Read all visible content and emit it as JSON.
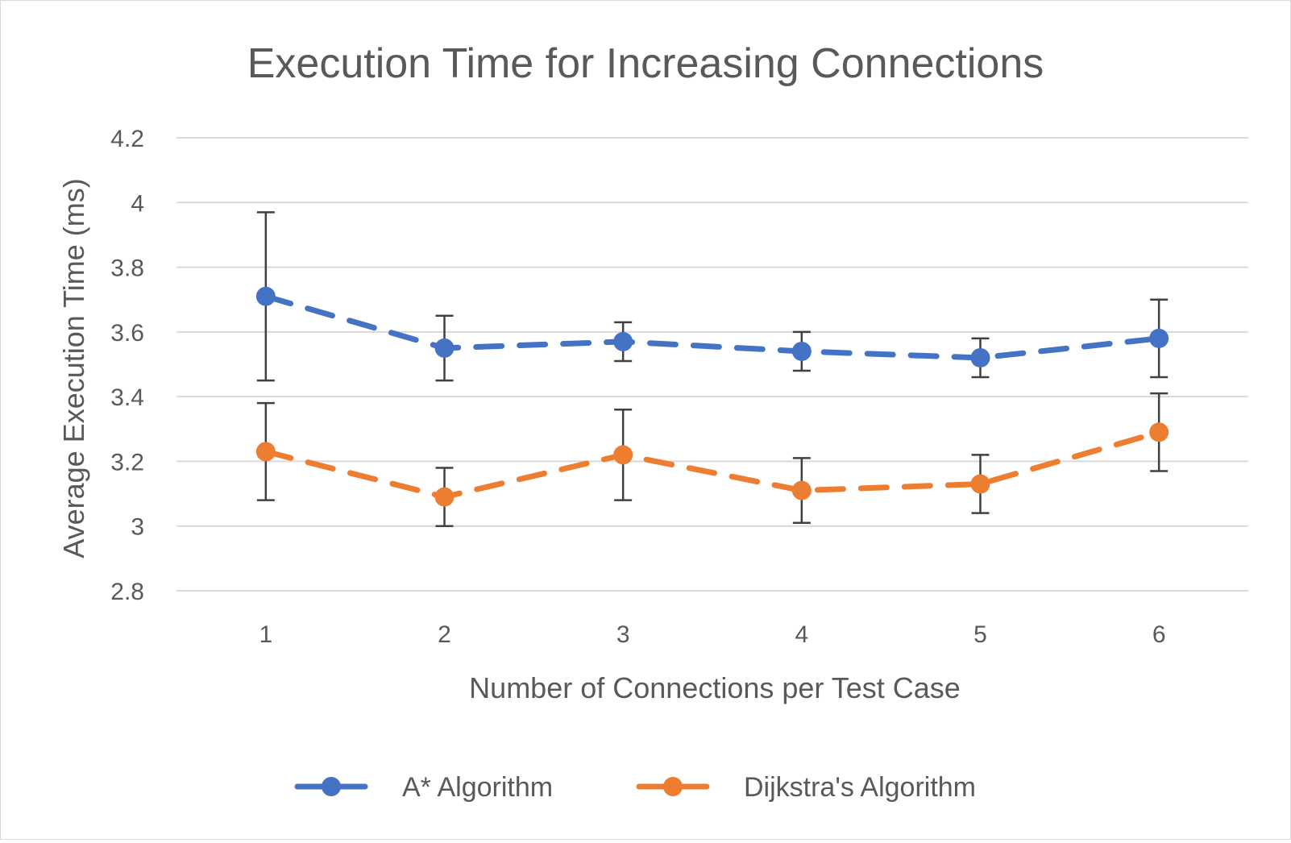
{
  "chart_data": {
    "type": "line",
    "title": "Execution Time for Increasing Connections",
    "xlabel": "Number of Connections per Test Case",
    "ylabel": "Average Execution Time (ms)",
    "categories": [
      "1",
      "2",
      "3",
      "4",
      "5",
      "6"
    ],
    "ylim": [
      2.8,
      4.2
    ],
    "yticks": [
      "2.8",
      "3",
      "3.2",
      "3.4",
      "3.6",
      "3.8",
      "4",
      "4.2"
    ],
    "ytick_values": [
      2.8,
      3.0,
      3.2,
      3.4,
      3.6,
      3.8,
      4.0,
      4.2
    ],
    "grid": true,
    "legend_position": "bottom",
    "line_style": "dashed",
    "error_bars": true,
    "series": [
      {
        "name": "A* Algorithm",
        "color": "#4472c4",
        "values": [
          3.71,
          3.55,
          3.57,
          3.54,
          3.52,
          3.58
        ],
        "error_low": [
          3.45,
          3.45,
          3.51,
          3.48,
          3.46,
          3.46
        ],
        "error_high": [
          3.97,
          3.65,
          3.63,
          3.6,
          3.58,
          3.7
        ]
      },
      {
        "name": "Dijkstra's Algorithm",
        "color": "#ed7d31",
        "values": [
          3.23,
          3.09,
          3.22,
          3.11,
          3.13,
          3.29
        ],
        "error_low": [
          3.08,
          3.0,
          3.08,
          3.01,
          3.04,
          3.17
        ],
        "error_high": [
          3.38,
          3.18,
          3.36,
          3.21,
          3.22,
          3.41
        ]
      }
    ]
  }
}
